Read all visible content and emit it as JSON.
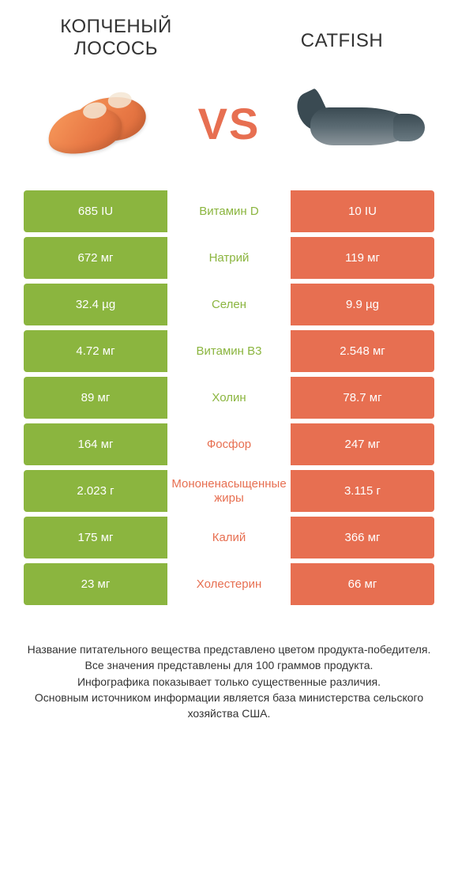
{
  "header": {
    "left_title": "Копченый лосось",
    "right_title": "Catfish",
    "vs_label": "VS"
  },
  "colors": {
    "green": "#8bb53f",
    "orange": "#e76f51",
    "text": "#333333",
    "background": "#ffffff"
  },
  "table": {
    "left_color": "green",
    "right_color": "orange",
    "rows": [
      {
        "left": "685 IU",
        "label": "Витамин D",
        "right": "10 IU",
        "label_color": "green"
      },
      {
        "left": "672 мг",
        "label": "Натрий",
        "right": "119 мг",
        "label_color": "green"
      },
      {
        "left": "32.4 µg",
        "label": "Селен",
        "right": "9.9 µg",
        "label_color": "green"
      },
      {
        "left": "4.72 мг",
        "label": "Витамин B3",
        "right": "2.548 мг",
        "label_color": "green"
      },
      {
        "left": "89 мг",
        "label": "Холин",
        "right": "78.7 мг",
        "label_color": "green"
      },
      {
        "left": "164 мг",
        "label": "Фосфор",
        "right": "247 мг",
        "label_color": "orange"
      },
      {
        "left": "2.023 г",
        "label": "Мононенасыщенные жиры",
        "right": "3.115 г",
        "label_color": "orange"
      },
      {
        "left": "175 мг",
        "label": "Калий",
        "right": "366 мг",
        "label_color": "orange"
      },
      {
        "left": "23 мг",
        "label": "Холестерин",
        "right": "66 мг",
        "label_color": "orange"
      }
    ]
  },
  "footer": {
    "line1": "Название питательного вещества представлено цветом продукта-победителя.",
    "line2": "Все значения представлены для 100 граммов продукта.",
    "line3": "Инфографика показывает только существенные различия.",
    "line4": "Основным источником информации является база министерства сельского хозяйства США."
  }
}
